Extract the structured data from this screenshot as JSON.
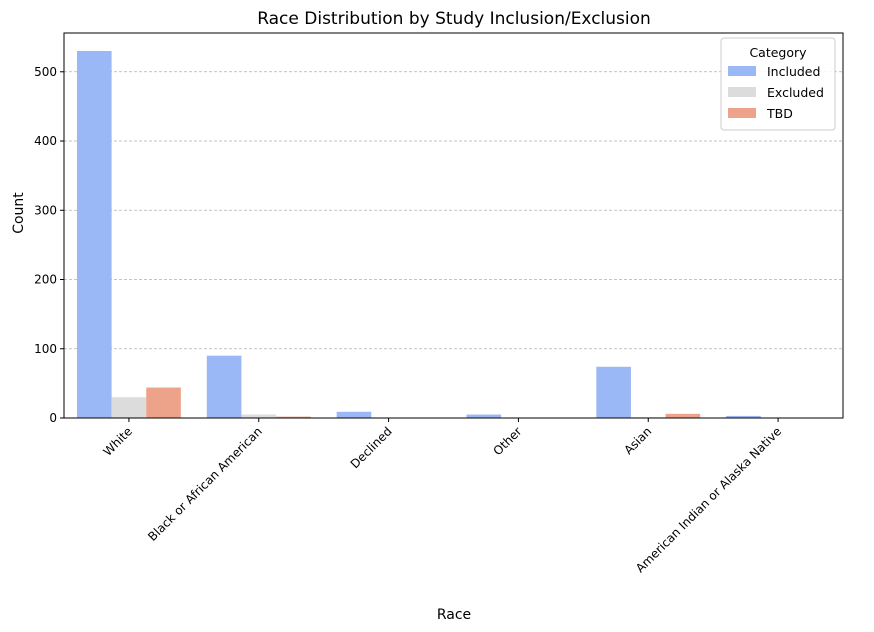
{
  "chart_data": {
    "type": "bar",
    "title": "Race Distribution by Study Inclusion/Exclusion",
    "xlabel": "Race",
    "ylabel": "Count",
    "categories": [
      "White",
      "Black or African American",
      "Declined",
      "Other",
      "Asian",
      "American Indian or Alaska Native"
    ],
    "series": [
      {
        "name": "Included",
        "color": "#9ab8f5",
        "values": [
          530,
          90,
          9,
          5,
          74,
          3
        ]
      },
      {
        "name": "Excluded",
        "color": "#dcdcdc",
        "values": [
          30,
          5,
          0,
          0,
          1,
          0
        ]
      },
      {
        "name": "TBD",
        "color": "#eda38a",
        "values": [
          44,
          2,
          0,
          0,
          6,
          0
        ]
      }
    ],
    "ylim": [
      0,
      556
    ],
    "yticks": [
      0,
      100,
      200,
      300,
      400,
      500
    ],
    "grid": "y-dashed",
    "legend": {
      "title": "Category",
      "placement": "top-right"
    }
  }
}
